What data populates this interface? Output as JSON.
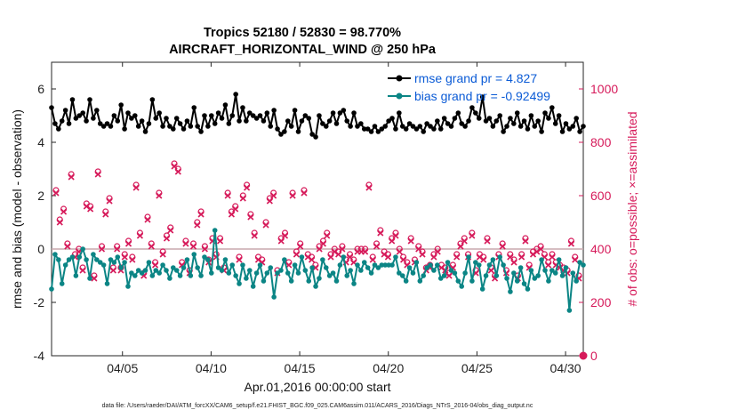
{
  "chart_data": {
    "type": "line",
    "title": "Tropics 52180 / 52830 = 98.770%",
    "subtitle": "AIRCRAFT_HORIZONTAL_WIND @ 250 hPa",
    "xlabel": "Apr.01,2016 00:00:00 start",
    "ylabel": "rmse and bias (model - observation)",
    "y2label": "# of obs: o=possible; ×=assimilated",
    "x_ticks": [
      "04/05",
      "04/10",
      "04/15",
      "04/20",
      "04/25",
      "04/30"
    ],
    "x_tick_days": [
      5,
      10,
      15,
      20,
      25,
      30
    ],
    "xlim": [
      1,
      31
    ],
    "ylim": [
      -4,
      7
    ],
    "y_ticks": [
      "-4",
      "-2",
      "0",
      "2",
      "4",
      "6"
    ],
    "y_tick_values": [
      -4,
      -2,
      0,
      2,
      4,
      6
    ],
    "y2lim": [
      0,
      1100
    ],
    "y2_ticks": [
      "0",
      "200",
      "400",
      "600",
      "800",
      "1000"
    ],
    "y2_tick_values": [
      0,
      200,
      400,
      600,
      800,
      1000
    ],
    "legend": [
      "rmse grand pr = 4.827",
      "bias grand pr = -0.92499"
    ],
    "footnote": "data file: /Users/raeder/DAI/ATM_forcXX/CAM6_setup/f.e21.FHIST_BGC.f09_025.CAM6assim.011/ACARS_2016/Diags_NTrS_2016-04/obs_diag_output.nc",
    "series": [
      {
        "name": "rmse",
        "values": [
          5.3,
          4.7,
          4.5,
          4.8,
          5.2,
          4.7,
          5.6,
          4.9,
          5.0,
          5.1,
          4.8,
          5.6,
          4.9,
          5.2,
          4.7,
          4.6,
          4.7,
          4.6,
          5.0,
          4.8,
          5.4,
          4.5,
          5.1,
          4.9,
          5.0,
          4.6,
          4.8,
          4.4,
          4.7,
          5.6,
          4.9,
          5.1,
          4.6,
          4.9,
          4.6,
          4.5,
          4.9,
          4.7,
          4.5,
          4.8,
          4.6,
          5.3,
          4.6,
          4.4,
          5.0,
          4.6,
          5.0,
          4.7,
          5.1,
          4.9,
          5.4,
          4.7,
          5.0,
          5.8,
          4.8,
          5.3,
          4.8,
          5.1,
          5.0,
          4.9,
          5.0,
          4.8,
          5.1,
          4.6,
          5.2,
          4.5,
          4.3,
          4.4,
          4.8,
          4.6,
          5.2,
          4.4,
          4.8,
          5.0,
          4.9,
          4.3,
          4.2,
          5.0,
          4.7,
          4.6,
          4.8,
          5.1,
          4.7,
          5.1,
          5.2,
          4.8,
          4.6,
          5.1,
          4.6,
          4.7,
          4.5,
          4.5,
          4.4,
          4.6,
          4.4,
          4.5,
          4.6,
          4.8,
          4.9,
          4.5,
          5.1,
          4.6,
          4.5,
          4.7,
          4.6,
          4.5,
          4.6,
          4.4,
          4.7,
          4.6,
          4.5,
          4.8,
          4.5,
          4.9,
          4.7,
          4.6,
          4.9,
          5.1,
          4.7,
          4.6,
          4.8,
          5.3,
          5.1,
          4.9,
          5.7,
          4.8,
          4.9,
          4.6,
          4.8,
          5.0,
          4.4,
          4.6,
          4.9,
          4.7,
          5.1,
          4.6,
          4.8,
          4.5,
          5.0,
          4.6,
          4.8,
          4.4,
          5.1,
          4.9,
          5.3,
          4.7,
          5.0,
          4.4,
          4.7,
          4.5,
          4.6,
          4.9,
          4.4,
          4.6
        ]
      },
      {
        "name": "bias",
        "values": [
          -1.5,
          -0.2,
          -0.4,
          -1.3,
          -0.6,
          -0.4,
          -0.3,
          -1.0,
          -0.3,
          0.0,
          -0.4,
          -1.1,
          -0.2,
          -0.4,
          -0.5,
          -0.6,
          -1.3,
          -0.4,
          -0.5,
          -0.3,
          -0.7,
          -0.5,
          -1.4,
          -0.9,
          -1.0,
          -0.8,
          -0.9,
          -0.8,
          -0.5,
          -1.0,
          -0.8,
          -0.9,
          -0.6,
          -0.8,
          -1.1,
          -0.7,
          -0.8,
          -1.0,
          -0.7,
          -0.4,
          -1.0,
          -0.2,
          -0.7,
          -1.0,
          -0.3,
          -0.4,
          -0.9,
          0.7,
          -0.7,
          -0.8,
          -0.4,
          -0.9,
          -0.6,
          -1.0,
          -1.3,
          -0.6,
          -1.1,
          -0.8,
          -1.4,
          -0.9,
          -0.6,
          -1.2,
          -0.9,
          -0.7,
          -1.8,
          -0.9,
          -0.8,
          -0.4,
          -0.9,
          -1.2,
          -0.6,
          -0.9,
          -0.3,
          -0.8,
          -1.2,
          -0.7,
          -1.4,
          -1.1,
          -0.4,
          -0.7,
          -1.0,
          -0.9,
          -1.2,
          -0.6,
          -0.3,
          -1.0,
          -0.8,
          -1.3,
          -0.6,
          -0.8,
          -0.5,
          -0.7,
          -0.9,
          -0.6,
          -0.7,
          -0.6,
          -0.6,
          -0.6,
          -0.6,
          -0.3,
          -0.9,
          -1.0,
          -1.2,
          -0.7,
          -0.9,
          -0.5,
          -1.2,
          -1.0,
          -0.7,
          -0.6,
          -0.8,
          -0.6,
          -1.1,
          -1.0,
          -0.5,
          -0.8,
          -0.9,
          -1.2,
          -1.4,
          -0.9,
          -0.3,
          -1.2,
          -0.5,
          -0.6,
          -1.5,
          -1.0,
          -0.6,
          -0.4,
          -1.0,
          -0.3,
          -0.6,
          -1.1,
          -1.6,
          -0.9,
          -1.2,
          -0.7,
          -1.3,
          -1.5,
          -0.8,
          -1.1,
          -1.0,
          -0.4,
          -0.8,
          -1.2,
          -0.8,
          -0.9,
          -0.4,
          -1.0,
          -0.7,
          -2.3,
          -0.9,
          -1.2,
          -0.5,
          -0.6
        ]
      },
      {
        "name": "obs possible",
        "values": [
          620,
          510,
          550,
          420,
          680,
          380,
          400,
          330,
          570,
          560,
          300,
          690,
          410,
          540,
          590,
          330,
          410,
          330,
          380,
          430,
          370,
          640,
          460,
          310,
          520,
          420,
          350,
          610,
          390,
          450,
          480,
          720,
          700,
          350,
          430,
          320,
          420,
          500,
          540,
          410,
          360,
          440,
          380,
          440,
          330,
          610,
          540,
          560,
          370,
          600,
          640,
          530,
          460,
          370,
          360,
          500,
          590,
          610,
          320,
          440,
          460,
          350,
          610,
          390,
          420,
          620,
          380,
          370,
          340,
          410,
          430,
          460,
          380,
          400,
          390,
          410,
          360,
          380,
          360,
          400,
          400,
          400,
          640,
          370,
          420,
          470,
          390,
          380,
          440,
          460,
          400,
          370,
          350,
          440,
          360,
          410,
          390,
          330,
          340,
          380,
          400,
          340,
          330,
          310,
          340,
          380,
          420,
          440,
          380,
          460,
          320,
          380,
          370,
          440,
          330,
          300,
          380,
          420,
          320,
          380,
          360,
          300,
          380,
          440,
          340,
          390,
          400,
          410,
          380,
          350,
          380,
          350,
          340,
          330,
          320,
          430,
          370,
          300
        ]
      },
      {
        "name": "obs assimilated",
        "values": [
          610,
          500,
          540,
          410,
          670,
          370,
          390,
          320,
          560,
          550,
          290,
          680,
          400,
          530,
          580,
          320,
          400,
          320,
          370,
          420,
          360,
          630,
          450,
          300,
          510,
          410,
          340,
          600,
          380,
          440,
          470,
          710,
          690,
          340,
          420,
          310,
          410,
          490,
          530,
          400,
          350,
          430,
          370,
          430,
          320,
          600,
          530,
          550,
          360,
          590,
          630,
          520,
          450,
          360,
          350,
          490,
          580,
          600,
          310,
          430,
          450,
          340,
          600,
          380,
          410,
          610,
          370,
          360,
          330,
          400,
          420,
          450,
          370,
          390,
          380,
          400,
          350,
          370,
          350,
          390,
          390,
          390,
          630,
          360,
          410,
          460,
          380,
          370,
          430,
          450,
          390,
          360,
          340,
          430,
          350,
          400,
          380,
          320,
          330,
          370,
          390,
          330,
          320,
          300,
          330,
          370,
          410,
          430,
          370,
          450,
          310,
          370,
          360,
          430,
          320,
          290,
          370,
          410,
          310,
          370,
          350,
          290,
          370,
          430,
          330,
          380,
          390,
          400,
          370,
          340,
          370,
          340,
          330,
          320,
          310,
          420,
          360,
          290
        ]
      }
    ]
  }
}
